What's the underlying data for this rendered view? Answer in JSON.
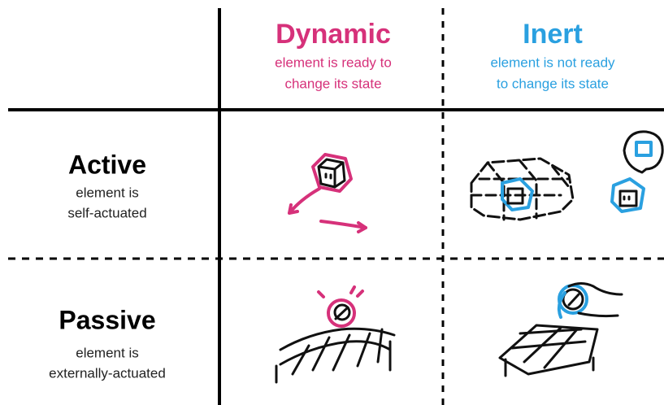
{
  "columns": [
    {
      "title": "Dynamic",
      "subtitle": [
        "element is ready to",
        "change its state"
      ]
    },
    {
      "title": "Inert",
      "subtitle": [
        "element is not ready",
        "to change its state"
      ]
    }
  ],
  "rows": [
    {
      "title": "Active",
      "subtitle": [
        "element is",
        "self-actuated"
      ]
    },
    {
      "title": "Passive",
      "subtitle": [
        "element is",
        "externally-actuated"
      ]
    }
  ]
}
